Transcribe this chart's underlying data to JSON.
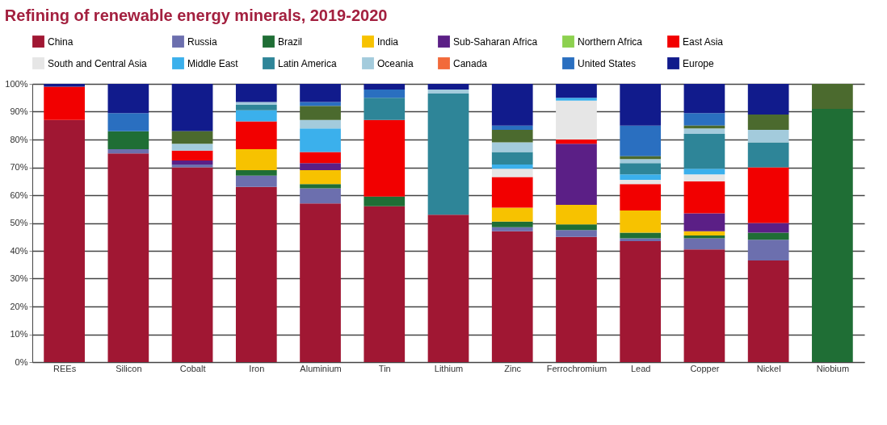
{
  "chart_data": {
    "type": "bar",
    "title": "Refining of renewable energy minerals, 2019-2020",
    "stacked": true,
    "legend": "top",
    "grid": "y",
    "categories": [
      "REEs",
      "Silicon",
      "Cobalt",
      "Iron",
      "Aluminium",
      "Tin",
      "Lithium",
      "Zinc",
      "Ferrochromium",
      "Lead",
      "Copper",
      "Nickel",
      "Niobium"
    ],
    "ylim": [
      0,
      100
    ],
    "yticks": [
      {
        "value": 0,
        "label": "0%"
      },
      {
        "value": 10,
        "label": "10%"
      },
      {
        "value": 20,
        "label": "20%"
      },
      {
        "value": 30,
        "label": "30%"
      },
      {
        "value": 40,
        "label": "40%"
      },
      {
        "value": 50,
        "label": "50%"
      },
      {
        "value": 60,
        "label": "60%"
      },
      {
        "value": 70,
        "label": "70%"
      },
      {
        "value": 80,
        "label": "80%"
      },
      {
        "value": 90,
        "label": "90%"
      },
      {
        "value": 100,
        "label": "100%"
      }
    ],
    "series": [
      {
        "name": "China",
        "color": "#a01733",
        "values": [
          87,
          75,
          70,
          63,
          57,
          56,
          53,
          47,
          45,
          43.5,
          40.5,
          36.5,
          null
        ]
      },
      {
        "name": "Russia",
        "color": "#6c6fae",
        "values": [
          null,
          1.5,
          1,
          4,
          5.5,
          null,
          null,
          1.5,
          2.5,
          1,
          4,
          7.5,
          null
        ]
      },
      {
        "name": "Brazil",
        "color": "#1f6e35",
        "values": [
          null,
          6.5,
          null,
          2,
          1.5,
          3.5,
          null,
          2,
          2,
          2,
          1,
          2.5,
          91
        ]
      },
      {
        "name": "India",
        "color": "#f7c200",
        "values": [
          null,
          null,
          null,
          7.5,
          5,
          null,
          null,
          5,
          7,
          8,
          1.5,
          null,
          null
        ]
      },
      {
        "name": "Sub-Saharan Africa",
        "color": "#5b1f86",
        "values": [
          null,
          null,
          1.5,
          null,
          2.5,
          null,
          null,
          null,
          22,
          null,
          6.5,
          3.5,
          null
        ]
      },
      {
        "name": "Northern Africa",
        "color": "#8dd14f",
        "values": [
          null,
          null,
          null,
          null,
          null,
          null,
          null,
          null,
          null,
          null,
          null,
          null,
          null
        ]
      },
      {
        "name": "East Asia",
        "color": "#f20000",
        "values": [
          12,
          null,
          3.5,
          10,
          4,
          27.5,
          null,
          11,
          1.5,
          9.5,
          11.5,
          20,
          null
        ]
      },
      {
        "name": "South and Central Asia",
        "color": "#e6e6e6",
        "values": [
          null,
          null,
          null,
          null,
          null,
          null,
          null,
          3,
          14,
          1.5,
          2.5,
          null,
          null
        ]
      },
      {
        "name": "Middle East",
        "color": "#3bb0ec",
        "values": [
          null,
          null,
          null,
          4,
          8.5,
          null,
          null,
          1.5,
          1,
          2,
          2,
          null,
          null
        ]
      },
      {
        "name": "Latin America",
        "color": "#2e8598",
        "values": [
          null,
          null,
          null,
          2,
          null,
          8,
          43.5,
          4.5,
          null,
          4,
          12.5,
          9,
          null
        ]
      },
      {
        "name": "Oceania",
        "color": "#a3cbdc",
        "values": [
          null,
          null,
          2.5,
          1,
          3,
          null,
          1.5,
          3.5,
          null,
          1.5,
          2,
          4.5,
          null
        ]
      },
      {
        "name": "Canada",
        "color": "#f26a3a",
        "values": [
          null,
          null,
          null,
          null,
          null,
          null,
          null,
          null,
          null,
          null,
          null,
          null,
          null
        ]
      },
      {
        "color": "#4b6a2e",
        "values": [
          null,
          null,
          4.5,
          null,
          5,
          null,
          null,
          4.5,
          null,
          1,
          1,
          5.5,
          9
        ]
      },
      {
        "name": "United States",
        "color": "#2a6fc0",
        "values": [
          null,
          6.5,
          null,
          null,
          1.5,
          3,
          null,
          1.5,
          null,
          11,
          4.5,
          null,
          null
        ]
      },
      {
        "name": "Europe",
        "color": "#111b8c",
        "values": [
          1,
          10.5,
          17,
          6.5,
          6.5,
          2,
          2,
          15,
          5,
          15,
          10.5,
          11,
          null
        ]
      }
    ]
  }
}
